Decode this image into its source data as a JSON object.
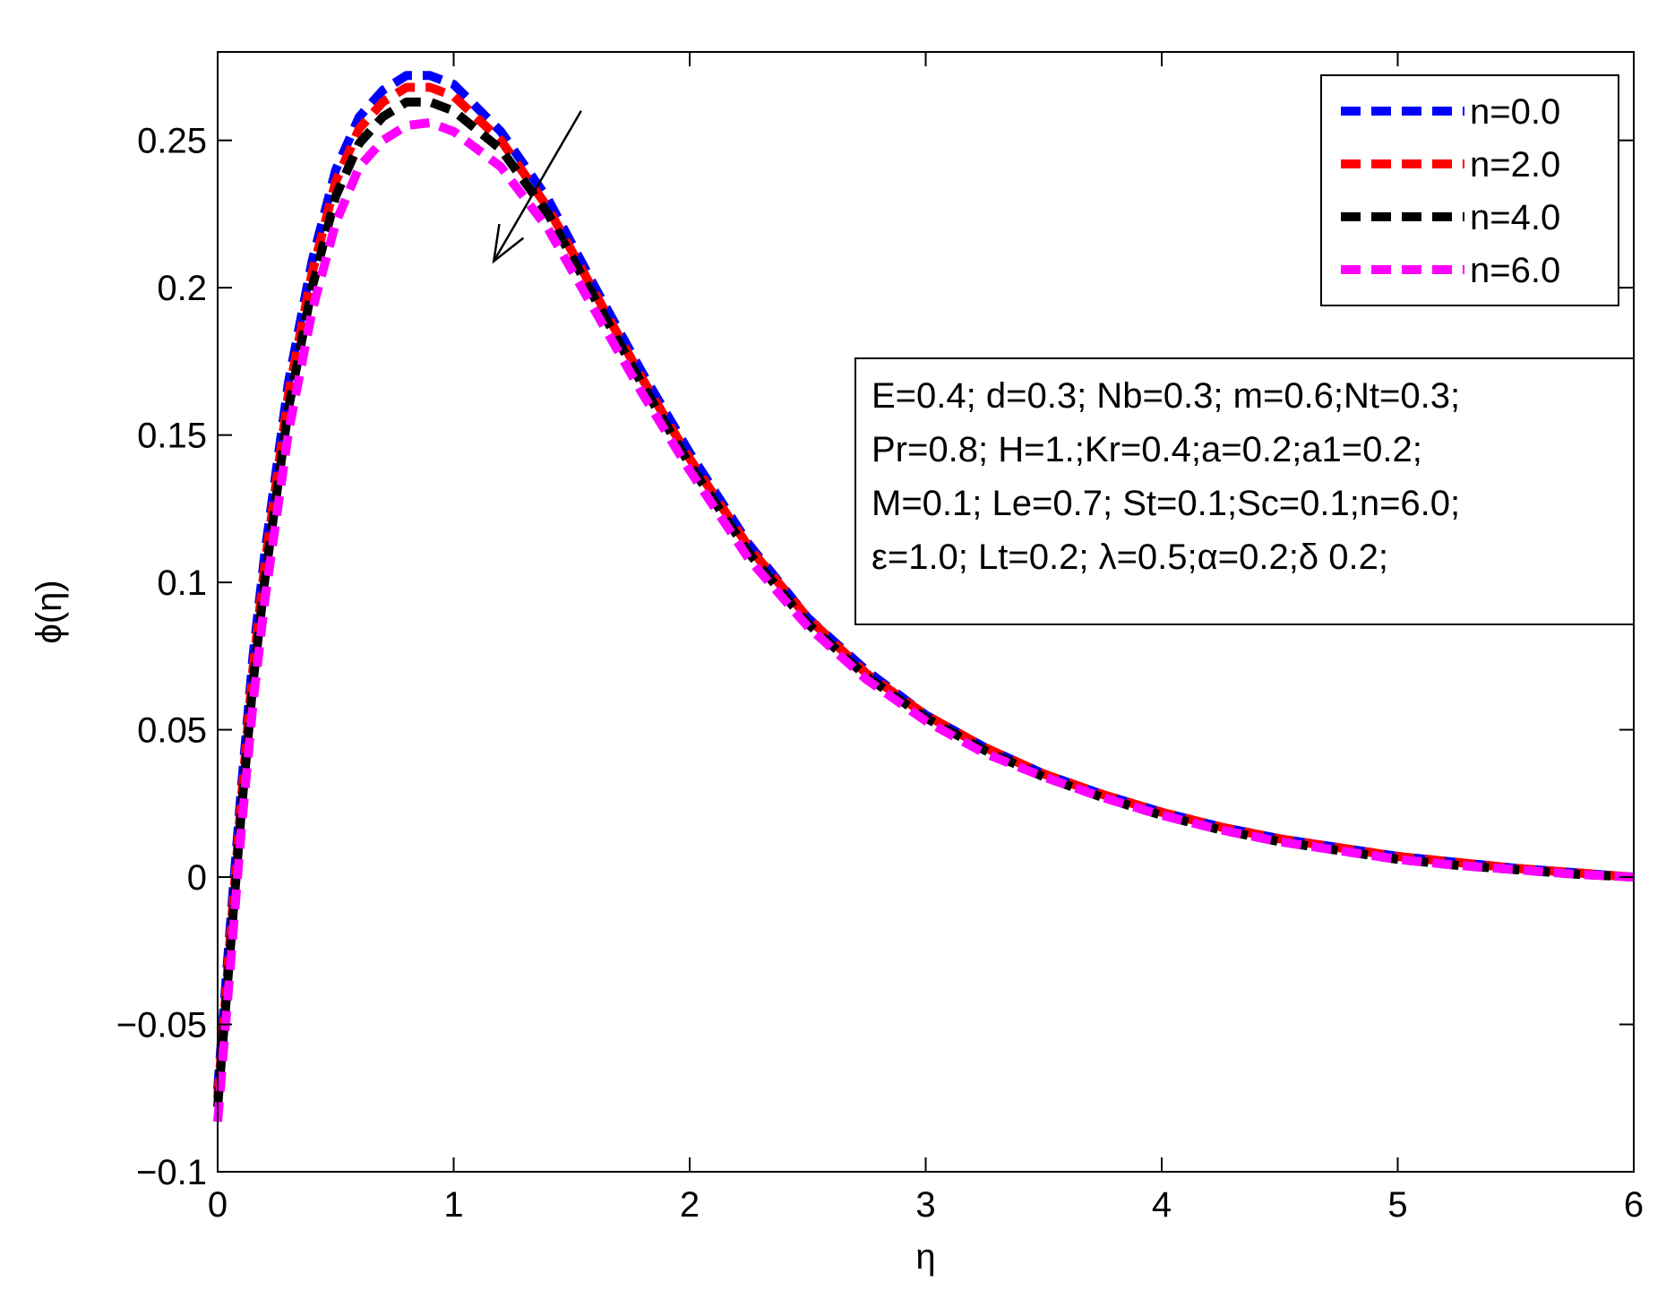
{
  "chart_data": {
    "type": "line",
    "xlabel": "η",
    "ylabel": "ϕ(η)",
    "xlim": [
      0,
      6
    ],
    "ylim": [
      -0.1,
      0.28
    ],
    "x_ticks": [
      0,
      1,
      2,
      3,
      4,
      5,
      6
    ],
    "x_tick_labels": [
      "0",
      "1",
      "2",
      "3",
      "4",
      "5",
      "6"
    ],
    "y_ticks": [
      -0.1,
      -0.05,
      0,
      0.05,
      0.1,
      0.15,
      0.2,
      0.25
    ],
    "y_tick_labels": [
      "−0.1",
      "−0.05",
      "0",
      "0.05",
      "0.1",
      "0.15",
      "0.2",
      "0.25"
    ],
    "grid": false,
    "legend_position": "top-right",
    "line_style": "dashed",
    "series": [
      {
        "name": "n=0.0",
        "color": "#0000ff",
        "x": [
          0,
          0.05,
          0.1,
          0.15,
          0.2,
          0.3,
          0.4,
          0.5,
          0.6,
          0.7,
          0.8,
          0.9,
          1.0,
          1.2,
          1.4,
          1.6,
          1.8,
          2.0,
          2.25,
          2.5,
          2.75,
          3.0,
          3.25,
          3.5,
          3.75,
          4.0,
          4.25,
          4.5,
          4.75,
          5.0,
          5.25,
          5.5,
          5.75,
          6.0
        ],
        "y": [
          -0.072,
          -0.02,
          0.03,
          0.075,
          0.11,
          0.168,
          0.209,
          0.24,
          0.258,
          0.267,
          0.272,
          0.272,
          0.269,
          0.253,
          0.23,
          0.2,
          0.171,
          0.144,
          0.113,
          0.088,
          0.07,
          0.055,
          0.044,
          0.035,
          0.028,
          0.022,
          0.017,
          0.013,
          0.01,
          0.007,
          0.005,
          0.003,
          0.0015,
          0.0
        ]
      },
      {
        "name": "n=2.0",
        "color": "#ff0000",
        "x": [
          0,
          0.05,
          0.1,
          0.15,
          0.2,
          0.3,
          0.4,
          0.5,
          0.6,
          0.7,
          0.8,
          0.9,
          1.0,
          1.2,
          1.4,
          1.6,
          1.8,
          2.0,
          2.25,
          2.5,
          2.75,
          3.0,
          3.25,
          3.5,
          3.75,
          4.0,
          4.25,
          4.5,
          4.75,
          5.0,
          5.25,
          5.5,
          5.75,
          6.0
        ],
        "y": [
          -0.075,
          -0.024,
          0.026,
          0.071,
          0.106,
          0.164,
          0.205,
          0.236,
          0.254,
          0.263,
          0.268,
          0.268,
          0.265,
          0.25,
          0.227,
          0.198,
          0.169,
          0.142,
          0.112,
          0.088,
          0.069,
          0.055,
          0.044,
          0.035,
          0.028,
          0.022,
          0.017,
          0.013,
          0.01,
          0.007,
          0.005,
          0.003,
          0.0015,
          0.0
        ]
      },
      {
        "name": "n=4.0",
        "color": "#000000",
        "x": [
          0,
          0.05,
          0.1,
          0.15,
          0.2,
          0.3,
          0.4,
          0.5,
          0.6,
          0.7,
          0.8,
          0.9,
          1.0,
          1.2,
          1.4,
          1.6,
          1.8,
          2.0,
          2.25,
          2.5,
          2.75,
          3.0,
          3.25,
          3.5,
          3.75,
          4.0,
          4.25,
          4.5,
          4.75,
          5.0,
          5.25,
          5.5,
          5.75,
          6.0
        ],
        "y": [
          -0.078,
          -0.028,
          0.022,
          0.066,
          0.101,
          0.159,
          0.2,
          0.231,
          0.249,
          0.258,
          0.263,
          0.263,
          0.26,
          0.247,
          0.225,
          0.196,
          0.167,
          0.14,
          0.11,
          0.086,
          0.068,
          0.054,
          0.043,
          0.034,
          0.027,
          0.021,
          0.016,
          0.012,
          0.009,
          0.006,
          0.004,
          0.0025,
          0.001,
          0.0
        ]
      },
      {
        "name": "n=6.0",
        "color": "#ff00ff",
        "x": [
          0,
          0.05,
          0.1,
          0.15,
          0.2,
          0.3,
          0.4,
          0.5,
          0.6,
          0.7,
          0.8,
          0.9,
          1.0,
          1.2,
          1.4,
          1.6,
          1.8,
          2.0,
          2.25,
          2.5,
          2.75,
          3.0,
          3.25,
          3.5,
          3.75,
          4.0,
          4.25,
          4.5,
          4.75,
          5.0,
          5.25,
          5.5,
          5.75,
          6.0
        ],
        "y": [
          -0.083,
          -0.034,
          0.016,
          0.059,
          0.094,
          0.151,
          0.192,
          0.222,
          0.241,
          0.25,
          0.255,
          0.256,
          0.253,
          0.241,
          0.22,
          0.192,
          0.164,
          0.138,
          0.108,
          0.085,
          0.067,
          0.053,
          0.042,
          0.034,
          0.027,
          0.021,
          0.016,
          0.012,
          0.009,
          0.006,
          0.004,
          0.0025,
          0.001,
          0.0
        ]
      }
    ],
    "annotations": {
      "arrow": {
        "from": [
          1.54,
          0.26
        ],
        "to": [
          1.17,
          0.209
        ],
        "meaning": "direction of increasing n"
      },
      "parameter_box": [
        "E=0.4; d=0.3; Nb=0.3; m=0.6;Nt=0.3;",
        "Pr=0.8; H=1.;Kr=0.4;a=0.2;a1=0.2;",
        "M=0.1; Le=0.7; St=0.1;Sc=0.1;n=6.0;",
        "ε=1.0; Lt=0.2; λ=0.5;α=0.2;δ 0.2;"
      ]
    }
  }
}
